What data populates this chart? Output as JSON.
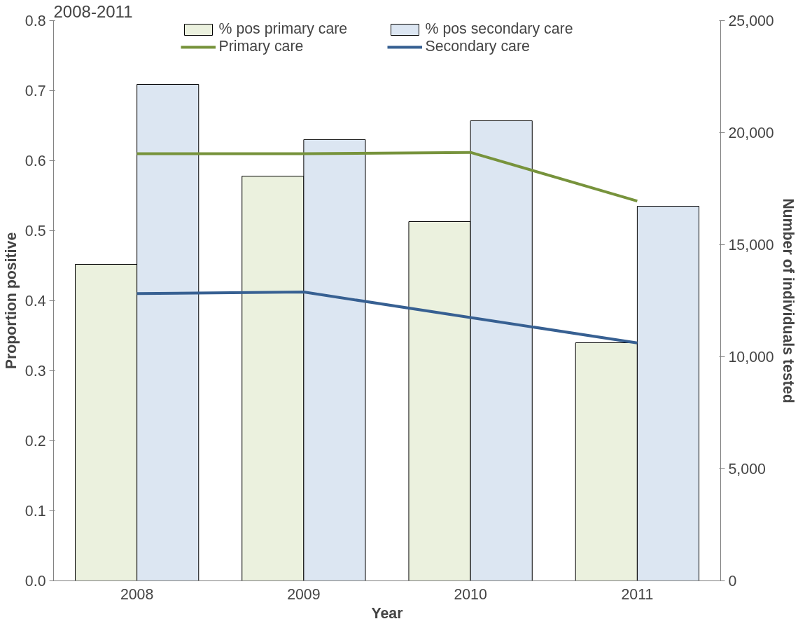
{
  "chart_data": {
    "type": "bar",
    "title": "2008-2011",
    "xlabel": "Year",
    "ylabel": "Proportion positive",
    "y2label": "Number of individuals tested",
    "categories": [
      "2008",
      "2009",
      "2010",
      "2011"
    ],
    "series": [
      {
        "name": "% pos primary care",
        "color": "#ebf1de",
        "values": [
          0.452,
          0.578,
          0.513,
          0.34
        ]
      },
      {
        "name": "% pos secondary care",
        "color": "#dce6f2",
        "values": [
          0.709,
          0.63,
          0.657,
          0.535
        ]
      },
      {
        "name": "Primary care",
        "type": "line",
        "axis": "y2",
        "color": "#77933c",
        "values": [
          19060,
          19060,
          19120,
          16950
        ]
      },
      {
        "name": "Secondary care",
        "type": "line",
        "axis": "y2",
        "color": "#376092",
        "values": [
          12820,
          12890,
          11750,
          10620
        ]
      }
    ],
    "ylim": [
      0,
      0.8
    ],
    "yticks": [
      {
        "value": 0,
        "label": "0.0"
      },
      0.1,
      0.2,
      0.3,
      0.4,
      0.5,
      0.6,
      0.7,
      0.8
    ],
    "y2lim": [
      0,
      25000
    ],
    "y2ticks": [
      0,
      {
        "value": 5000,
        "label": "5,000"
      },
      {
        "value": 10000,
        "label": "10,000"
      },
      {
        "value": 15000,
        "label": "15,000"
      },
      {
        "value": 20000,
        "label": "20,000"
      },
      {
        "value": 25000,
        "label": "25,000"
      }
    ],
    "legend": "top",
    "grid": false,
    "marker": "none",
    "line_style": "solid"
  }
}
